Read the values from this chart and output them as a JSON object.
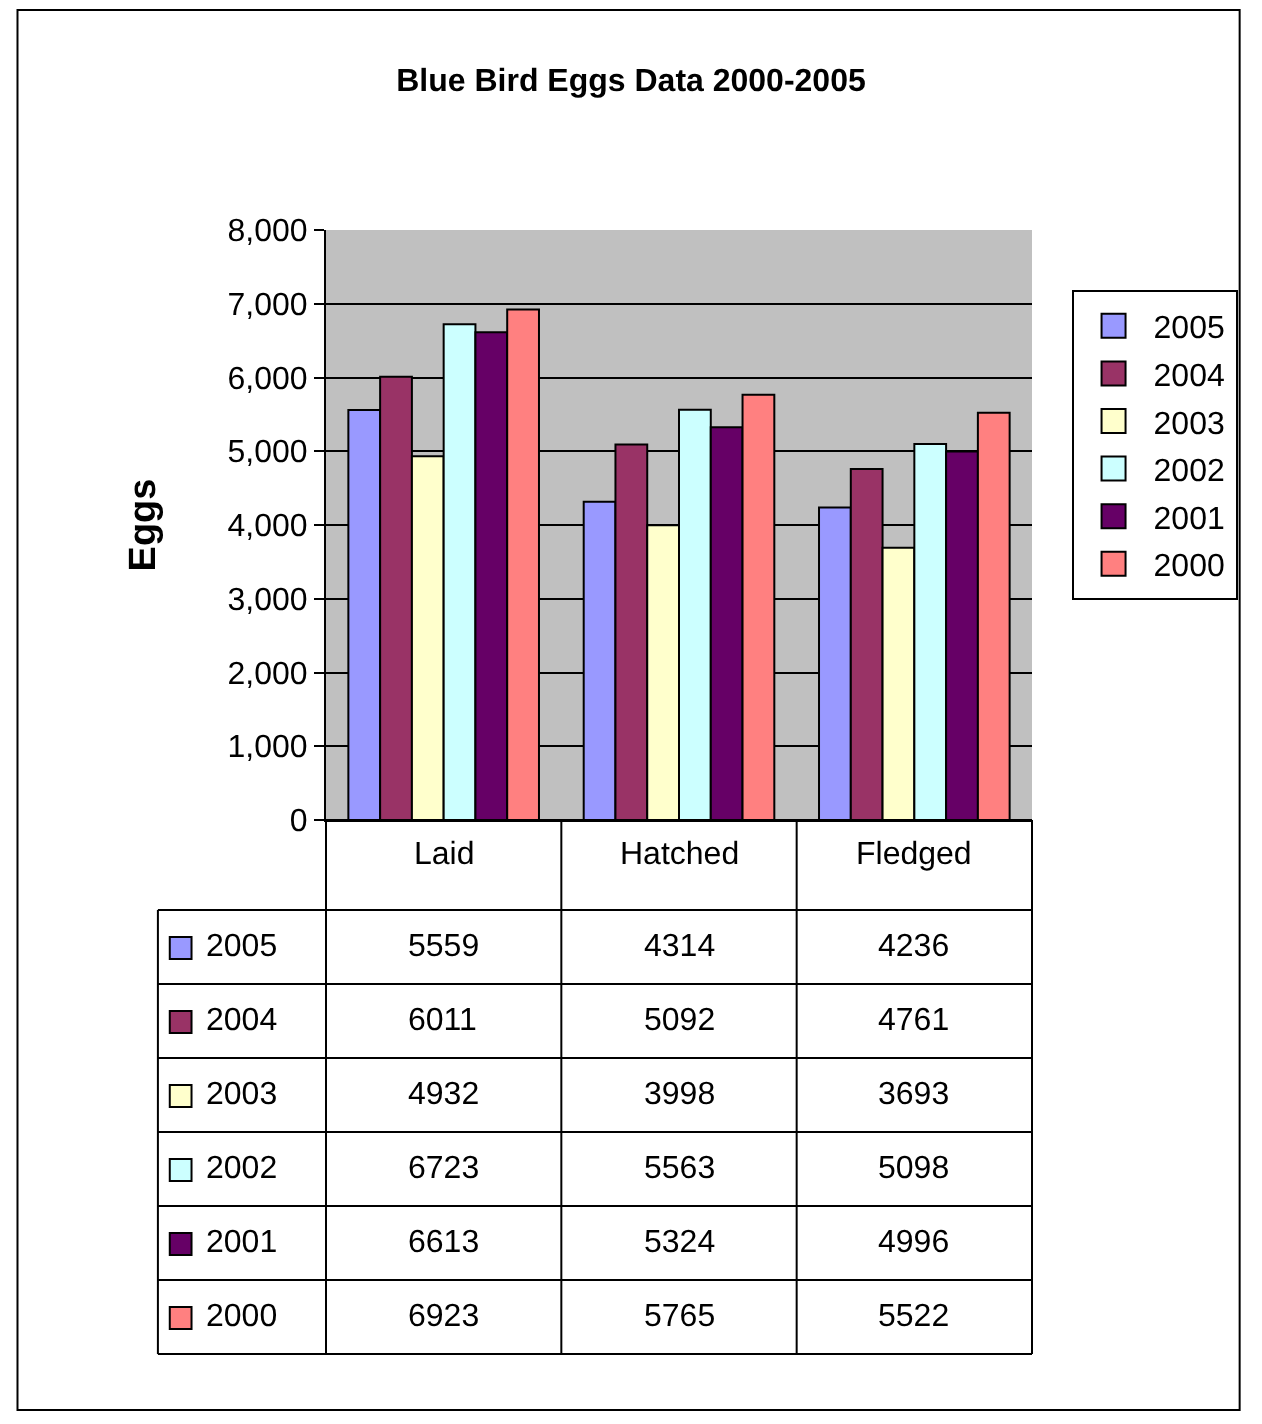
{
  "chart_data": {
    "type": "bar",
    "title": "Blue Bird Eggs Data 2000-2005",
    "ylabel": "Eggs",
    "categories": [
      "Laid",
      "Hatched",
      "Fledged"
    ],
    "series": [
      {
        "name": "2005",
        "color": "#9999ff",
        "values": [
          5559,
          4314,
          4236
        ]
      },
      {
        "name": "2004",
        "color": "#993366",
        "values": [
          6011,
          5092,
          4761
        ]
      },
      {
        "name": "2003",
        "color": "#ffffcc",
        "values": [
          4932,
          3998,
          3693
        ]
      },
      {
        "name": "2002",
        "color": "#ccffff",
        "values": [
          6723,
          5563,
          5098
        ]
      },
      {
        "name": "2001",
        "color": "#660066",
        "values": [
          6613,
          5324,
          4996
        ]
      },
      {
        "name": "2000",
        "color": "#ff8080",
        "values": [
          6923,
          5765,
          5522
        ]
      }
    ],
    "ylim": [
      0,
      8000
    ],
    "yticks": [
      0,
      {
        "value": 1000,
        "label": "1,000"
      },
      {
        "value": 2000,
        "label": "2,000"
      },
      {
        "value": 3000,
        "label": "3,000"
      },
      {
        "value": 4000,
        "label": "4,000"
      },
      {
        "value": 5000,
        "label": "5,000"
      },
      {
        "value": 6000,
        "label": "6,000"
      },
      {
        "value": 7000,
        "label": "7,000"
      },
      {
        "value": 8000,
        "label": "8,000"
      }
    ],
    "grid": "y",
    "legend": "right",
    "data_labels": true
  }
}
